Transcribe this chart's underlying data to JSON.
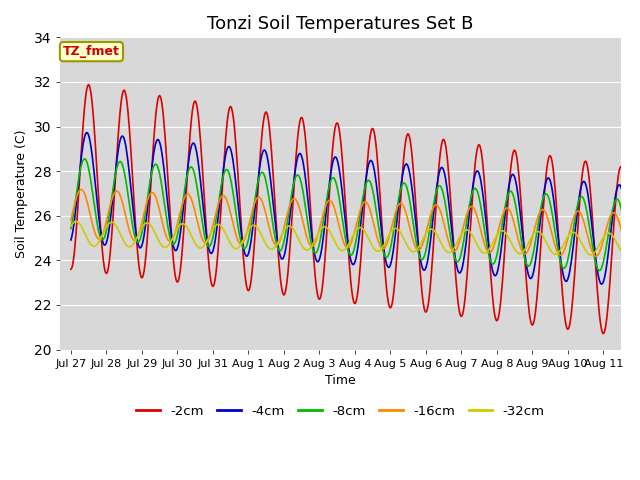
{
  "title": "Tonzi Soil Temperatures Set B",
  "xlabel": "Time",
  "ylabel": "Soil Temperature (C)",
  "ylim": [
    20,
    34
  ],
  "xlim_days": 15.5,
  "tick_labels": [
    "Jul 27",
    "Jul 28",
    "Jul 29",
    "Jul 30",
    "Jul 31",
    "Aug 1",
    "Aug 2",
    "Aug 3",
    "Aug 4",
    "Aug 5",
    "Aug 6",
    "Aug 7",
    "Aug 8",
    "Aug 9",
    "Aug 10",
    "Aug 11"
  ],
  "annotation_text": "TZ_fmet",
  "annotation_color": "#cc0000",
  "annotation_bg": "#ffffcc",
  "annotation_border": "#999900",
  "colors": {
    "-2cm": "#dd0000",
    "-4cm": "#0000cc",
    "-8cm": "#00bb00",
    "-16cm": "#ff8800",
    "-32cm": "#cccc00"
  },
  "bg_color": "#d8d8d8",
  "linewidth": 1.2,
  "grid_color": "#ffffff",
  "title_fontsize": 13,
  "tick_fontsize": 8
}
